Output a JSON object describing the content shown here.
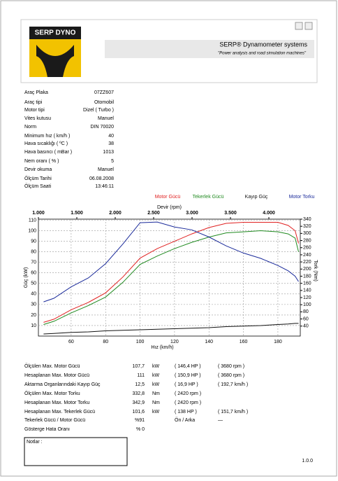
{
  "header": {
    "brand": "SERP DYNO",
    "system": "SERP® Dynamometer systems",
    "slogan": "\"Power analysis and road simulation machines\""
  },
  "vehicle": [
    [
      "Araç Plaka",
      "07ZZ607"
    ],
    [
      "Araç tipi",
      "Otomobil"
    ],
    [
      "Motor tipi",
      "Dizel   (  Turbo  )"
    ],
    [
      "Vites kutusu",
      "Manuel"
    ],
    [
      "Norm",
      "DIN 70020"
    ],
    [
      "Minimum hız ( km/h )",
      "40"
    ],
    [
      "Hava sıcaklığı ( ºC )",
      "38"
    ],
    [
      "Hava basıncı ( mBar )",
      "1013"
    ],
    [
      "Nem oranı ( % )",
      "5"
    ],
    [
      "Devir okuma",
      "Manuel"
    ],
    [
      "Ölçüm Tarihi",
      "06.08.2008"
    ],
    [
      "Ölçüm Saati",
      "13:46:11"
    ]
  ],
  "chart_data": {
    "type": "line",
    "x_label": "Hız (km/h)",
    "y_label": "Güç (kW)",
    "y2_label": "Tork (Nm)",
    "x2_label": "Devir (rpm)",
    "x": [
      44,
      50,
      60,
      70,
      80,
      90,
      100,
      110,
      120,
      130,
      140,
      150,
      160,
      170,
      180,
      186,
      190,
      192
    ],
    "series": [
      {
        "name": "Motor Gücü",
        "color": "#e02020",
        "values": [
          13,
          16,
          25,
          32,
          41,
          56,
          74,
          83,
          90,
          97,
          103,
          107,
          108,
          108,
          108,
          105,
          100,
          88
        ]
      },
      {
        "name": "Tekerlek Gücü",
        "color": "#208a20",
        "values": [
          11,
          14,
          22,
          29,
          37,
          51,
          68,
          76,
          83,
          89,
          94,
          98,
          99,
          100,
          99,
          97,
          93,
          80
        ]
      },
      {
        "name": "Kayıp Güç",
        "color": "#111111",
        "values": [
          2,
          2.5,
          3.5,
          4,
          5,
          5.5,
          6,
          6.5,
          7,
          7.5,
          8,
          9,
          9.5,
          10,
          11,
          11.5,
          12,
          12
        ]
      },
      {
        "name": "Motor Torku",
        "color": "#1a2a9a",
        "axis": "y2",
        "values": [
          108,
          118,
          150,
          175,
          215,
          270,
          330,
          332,
          318,
          310,
          290,
          265,
          245,
          230,
          210,
          195,
          180,
          165
        ]
      }
    ],
    "xlim": [
      41,
      193
    ],
    "xticks": [
      60,
      80,
      100,
      120,
      140,
      160,
      180
    ],
    "x2lim": [
      1000,
      4409
    ],
    "x2ticks": [
      {
        "value": 1000,
        "label": "1.000"
      },
      {
        "value": 1500,
        "label": "1.500"
      },
      {
        "value": 2000,
        "label": "2.000"
      },
      {
        "value": 2500,
        "label": "2.500"
      },
      {
        "value": 3000,
        "label": "3.000"
      },
      {
        "value": 3500,
        "label": "3.500"
      },
      {
        "value": 4000,
        "label": "4.000"
      }
    ],
    "ylim": [
      0,
      111
    ],
    "yticks": [
      10,
      20,
      30,
      40,
      50,
      60,
      70,
      80,
      90,
      100,
      110
    ],
    "y2lim": [
      12,
      340
    ],
    "y2ticks": [
      40,
      60,
      80,
      100,
      120,
      140,
      160,
      180,
      200,
      220,
      240,
      260,
      280,
      300,
      320,
      340
    ],
    "grid": true
  },
  "results": [
    {
      "label": "Ölçülen Max. Motor Gücü",
      "value": "107,7",
      "unit": "kW",
      "c4": "( 146,4 HP )",
      "c5": "( 3680 rpm )"
    },
    {
      "label": "Hesaplanan Max. Motor Gücü",
      "value": "111",
      "unit": "kW",
      "c4": "( 150,9 HP )",
      "c5": "( 3680 rpm )"
    },
    {
      "label": "Aktarma Organlarındaki Kayıp Güç",
      "value": "12,5",
      "unit": "kW",
      "c4": "( 16,9 HP )",
      "c5": "( 192,7 km/h )"
    },
    {
      "label": "Ölçülen Max. Motor Torku",
      "value": "332,8",
      "unit": "Nm",
      "c4": "( 2420 rpm )"
    },
    {
      "label": "Hesaplanan Max. Motor Torku",
      "value": "342,9",
      "unit": "Nm",
      "c4": "( 2420 rpm )"
    },
    {
      "label": "Hesaplanan Max. Tekerlek Gücü",
      "value": "101,6",
      "unit": "kW",
      "c4": "( 138 HP )",
      "c5": "( 151,7 km/h )"
    },
    {
      "label": "Tekerlek Gücü / Motor Gücü",
      "value": "%91",
      "c4": "Ön / Arka",
      "c5": "—"
    },
    {
      "label": "Gösterge Hata Oranı",
      "value": "% 0"
    }
  ],
  "notes": "Notlar :",
  "version": "1.0.0"
}
